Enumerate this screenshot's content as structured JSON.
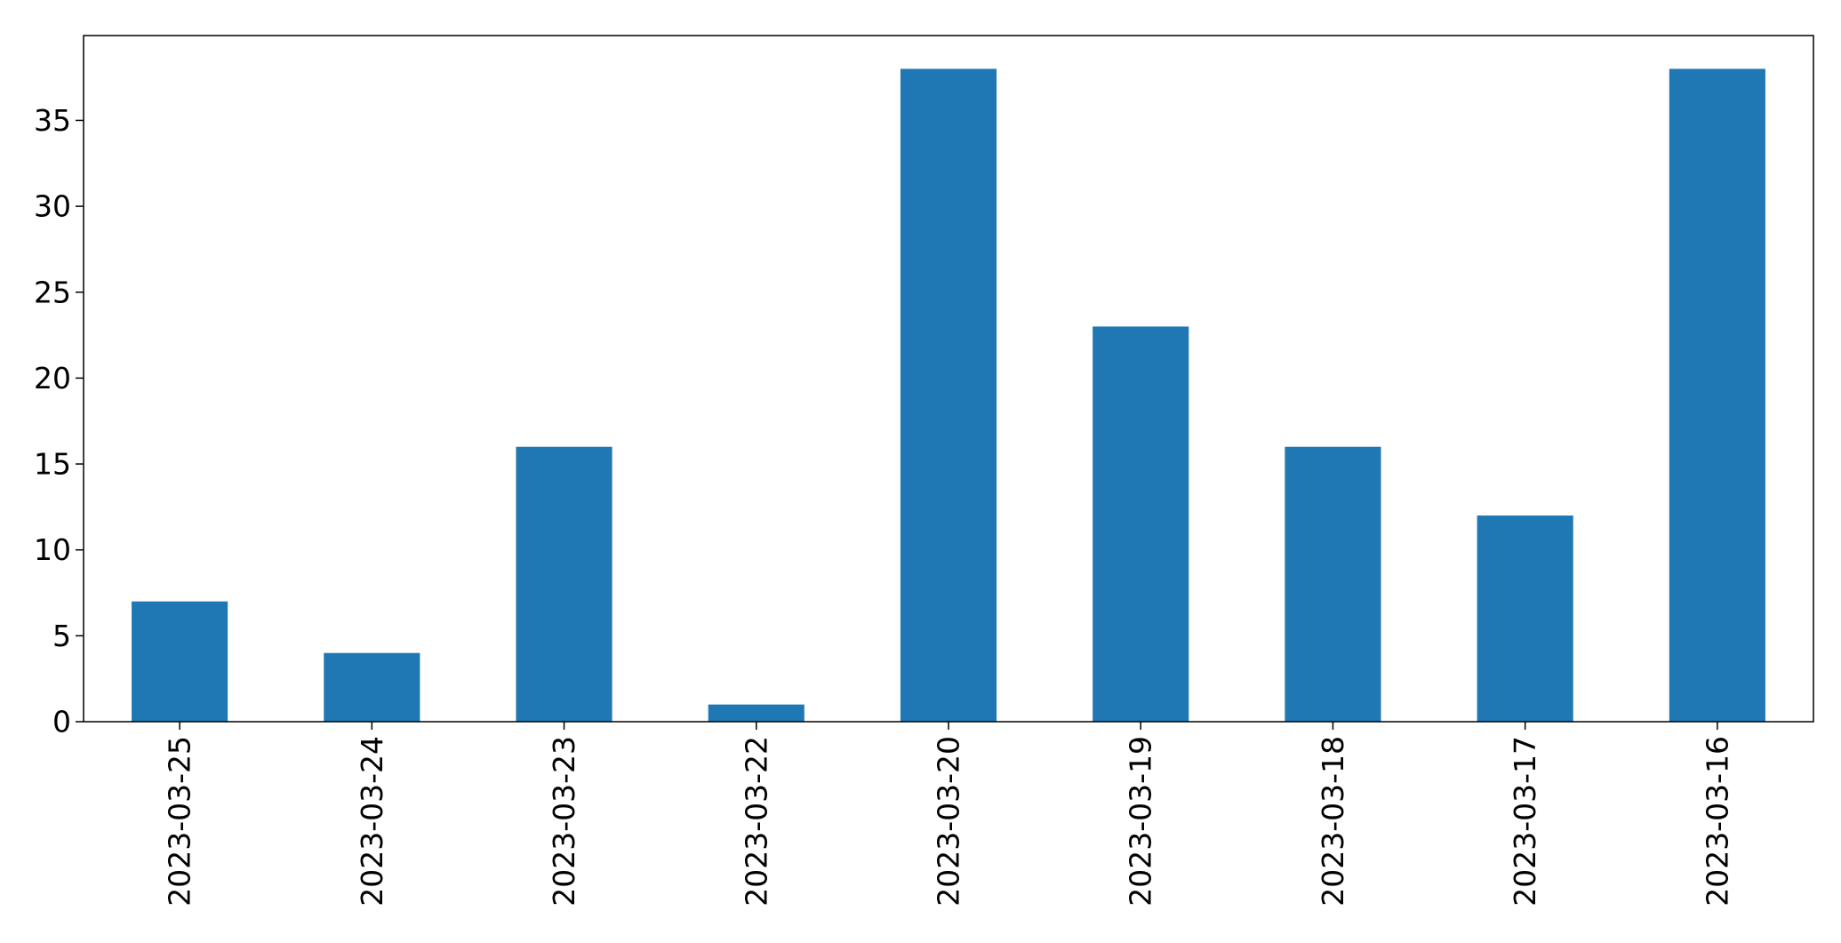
{
  "chart_data": {
    "type": "bar",
    "categories": [
      "2023-03-25",
      "2023-03-24",
      "2023-03-23",
      "2023-03-22",
      "2023-03-20",
      "2023-03-19",
      "2023-03-18",
      "2023-03-17",
      "2023-03-16"
    ],
    "values": [
      7,
      4,
      16,
      1,
      38,
      23,
      16,
      12,
      38
    ],
    "title": "",
    "xlabel": "",
    "ylabel": "",
    "ylim": [
      0,
      40
    ],
    "yticks": [
      0,
      5,
      10,
      15,
      20,
      25,
      30,
      35
    ],
    "grid": false,
    "legend": "none",
    "bar_color": "#1f77b4"
  }
}
